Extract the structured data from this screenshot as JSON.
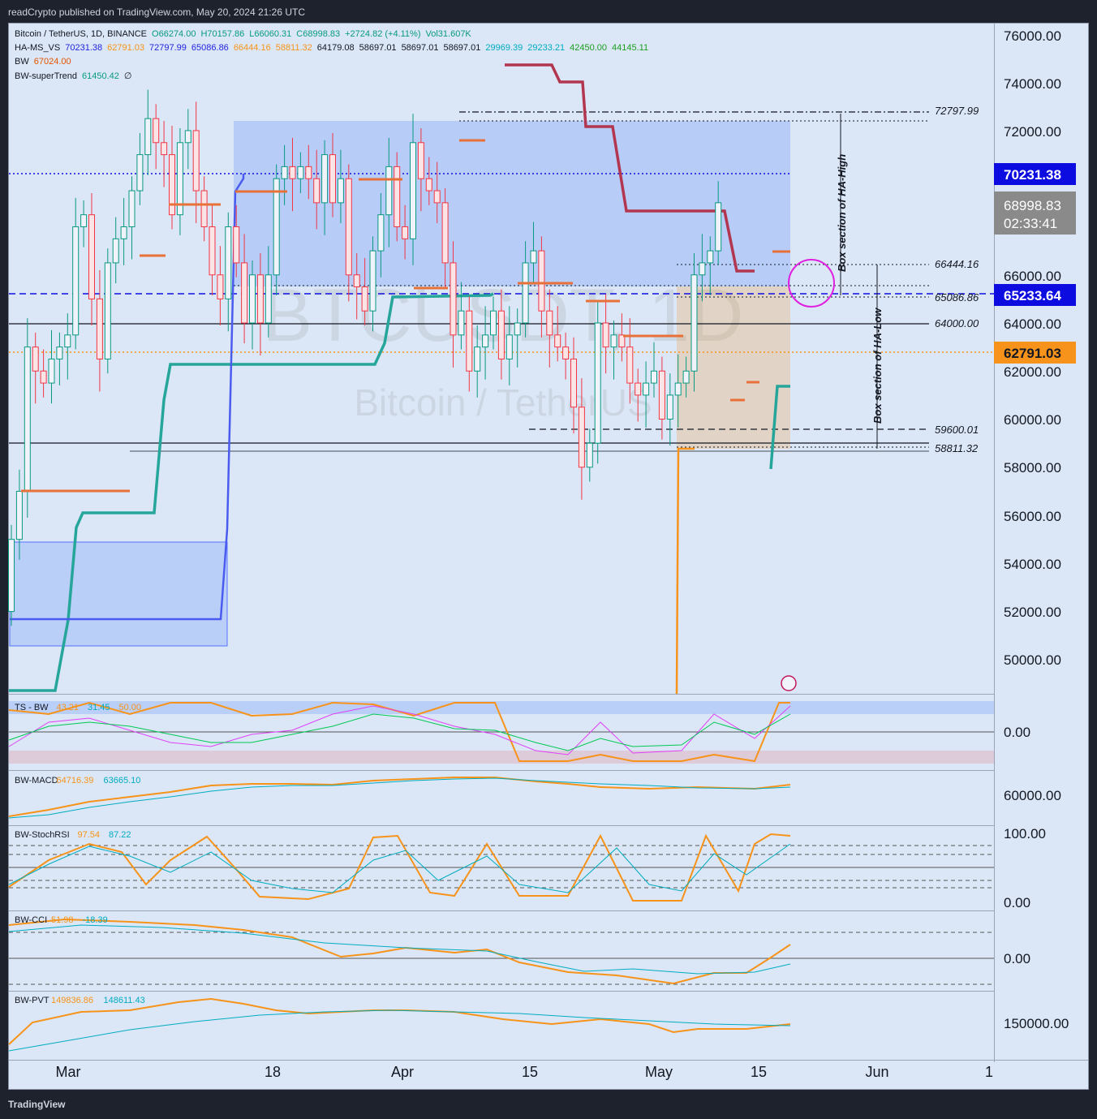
{
  "header": {
    "text": "readCrypto published on TradingView.com, May 20, 2024 21:26 UTC"
  },
  "footer": {
    "brand": "TradingView"
  },
  "legend": {
    "main": [
      {
        "text": "Bitcoin / TetherUS, 1D, BINANCE",
        "color": "#131722"
      },
      {
        "text": "O66274.00",
        "color": "#089981"
      },
      {
        "text": "H70157.86",
        "color": "#089981"
      },
      {
        "text": "L66060.31",
        "color": "#089981"
      },
      {
        "text": "C68998.83",
        "color": "#089981"
      },
      {
        "text": "+2724.82 (+4.11%)",
        "color": "#089981"
      },
      {
        "text": "Vol31.607K",
        "color": "#089981"
      }
    ],
    "hams": [
      {
        "text": "HA-MS_VS",
        "color": "#131722"
      },
      {
        "text": "70231.38",
        "color": "#2323e0"
      },
      {
        "text": "62791.03",
        "color": "#f7931a"
      },
      {
        "text": "72797.99",
        "color": "#2323e0"
      },
      {
        "text": "65086.86",
        "color": "#2323e0"
      },
      {
        "text": "66444.16",
        "color": "#f7931a"
      },
      {
        "text": "58811.32",
        "color": "#f7931a"
      },
      {
        "text": "64179.08",
        "color": "#131722"
      },
      {
        "text": "58697.01",
        "color": "#131722"
      },
      {
        "text": "58697.01",
        "color": "#131722"
      },
      {
        "text": "58697.01",
        "color": "#131722"
      },
      {
        "text": "29969.39",
        "color": "#00acc1"
      },
      {
        "text": "29233.21",
        "color": "#00acc1"
      },
      {
        "text": "42450.00",
        "color": "#1b9e20"
      },
      {
        "text": "44145.11",
        "color": "#1b9e20"
      }
    ],
    "bw": [
      {
        "text": "BW",
        "color": "#131722"
      },
      {
        "text": "67024.00",
        "color": "#e65100"
      }
    ],
    "supertrend": [
      {
        "text": "BW-superTrend",
        "color": "#131722"
      },
      {
        "text": "61450.42",
        "color": "#089981"
      },
      {
        "text": "∅",
        "color": "#131722"
      }
    ]
  },
  "watermark": {
    "symbol": "BTCUSDT, 1D",
    "name": "Bitcoin / TetherUS"
  },
  "y_axis": {
    "ticks": [
      "76000.00",
      "74000.00",
      "72000.00",
      "66000.00",
      "64000.00",
      "62000.00",
      "60000.00",
      "58000.00",
      "56000.00",
      "54000.00",
      "52000.00",
      "50000.00"
    ]
  },
  "x_axis": {
    "ticks": [
      "Mar",
      "18",
      "Apr",
      "15",
      "May",
      "15",
      "Jun",
      "1"
    ]
  },
  "price_badges": [
    {
      "id": "blue-top",
      "text": "70231.38",
      "color": "#0c0ce0"
    },
    {
      "id": "current",
      "text": "68998.83",
      "countdown": "02:33:41",
      "color": "#8a8a8a"
    },
    {
      "id": "blue-mid",
      "text": "65233.64",
      "color": "#0c0ce0"
    },
    {
      "id": "orange",
      "text": "62791.03",
      "color": "#f7931a"
    }
  ],
  "levels": [
    {
      "text": "72797.99"
    },
    {
      "text": "66444.16"
    },
    {
      "text": "65086.86"
    },
    {
      "text": "64000.00"
    },
    {
      "text": "59600.01"
    },
    {
      "text": "58811.32"
    }
  ],
  "annotations": {
    "ha_high": "Box section of HA-High",
    "ha_low": "Box section of HA-Low"
  },
  "panes": {
    "ts": {
      "title": "TS - BW",
      "v1": "43.21",
      "v2": "31.45",
      "v3": "50.00",
      "axis": "0.00"
    },
    "macd": {
      "title": "BW-MACD",
      "v1": "64716.39",
      "v2": "63665.10",
      "axis": "60000.00"
    },
    "stoch": {
      "title": "BW-StochRSI",
      "v1": "97.54",
      "v2": "87.22",
      "axis_top": "100.00",
      "axis_bot": "0.00"
    },
    "cci": {
      "title": "BW-CCI",
      "v1": "51.98",
      "v2": "-18.39",
      "axis": "0.00"
    },
    "pvt": {
      "title": "BW-PVT",
      "v1": "149836.86",
      "v2": "148611.43",
      "axis": "150000.00"
    }
  },
  "colors": {
    "up": "#089981",
    "down": "#f23645",
    "box_blue": "#2962ff",
    "box_orange": "#f7931a",
    "supertrend": "#26a69a",
    "bw_red": "#b2364f"
  },
  "chart_data": {
    "type": "candlestick",
    "ylim": [
      48500,
      76500
    ],
    "close": [
      55000,
      57000,
      63000,
      62000,
      61500,
      62500,
      63000,
      63500,
      68000,
      68500,
      65000,
      62500,
      66500,
      67500,
      68000,
      69500,
      71000,
      72500,
      71500,
      71000,
      68500,
      71500,
      72000,
      69500,
      68000,
      66000,
      65000,
      68000,
      66500,
      64000,
      66000,
      64000,
      66000,
      70000,
      70500,
      70000,
      70500,
      70000,
      69000,
      71000,
      69000,
      70000,
      66000,
      65500,
      64500,
      67000,
      68500,
      70500,
      68000,
      67500,
      71500,
      70000,
      69500,
      69000,
      66500,
      63500,
      64500,
      62000,
      63000,
      63500,
      64500,
      62500,
      63500,
      64000,
      66500,
      67000,
      64500,
      63500,
      63000,
      62500,
      60500,
      58000,
      59000,
      64000,
      63000,
      63500,
      63000,
      61500,
      61000,
      61500,
      62000,
      60000,
      61000,
      61500,
      62000,
      66000,
      66500,
      67000,
      69000
    ]
  }
}
